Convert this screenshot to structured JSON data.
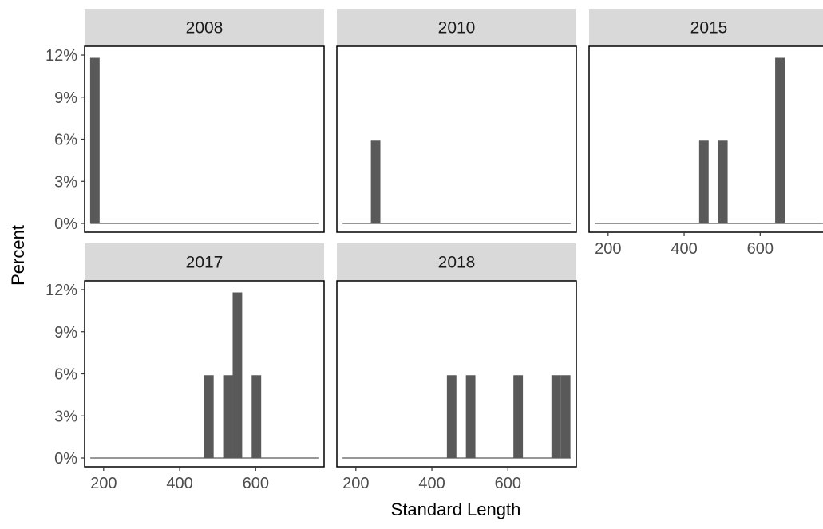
{
  "chart_data": {
    "type": "bar",
    "chart_kind": "faceted histogram",
    "xlabel": "Standard Length",
    "ylabel": "Percent",
    "xlim": [
      150,
      780
    ],
    "ylim": [
      0,
      12
    ],
    "x_ticks": [
      {
        "value": 200,
        "label": "200"
      },
      {
        "value": 400,
        "label": "400"
      },
      {
        "value": 600,
        "label": "600"
      }
    ],
    "y_ticks": [
      {
        "value": 0,
        "label": "0%"
      },
      {
        "value": 3,
        "label": "3%"
      },
      {
        "value": 6,
        "label": "6%"
      },
      {
        "value": 9,
        "label": "9%"
      },
      {
        "value": 12,
        "label": "12%"
      }
    ],
    "bar_color": "#595959",
    "strip_color": "#d9d9d9",
    "panel_border_color": "#000000",
    "bin_width": 25,
    "baseline_range": [
      165,
      765
    ],
    "facets": [
      {
        "label": "2008",
        "bins": [
          {
            "x": 177,
            "y": 11.8
          }
        ]
      },
      {
        "label": "2010",
        "bins": [
          {
            "x": 252,
            "y": 5.9
          }
        ]
      },
      {
        "label": "2015",
        "bins": [
          {
            "x": 452,
            "y": 5.9
          },
          {
            "x": 502,
            "y": 5.9
          },
          {
            "x": 652,
            "y": 11.8
          }
        ]
      },
      {
        "label": "2017",
        "bins": [
          {
            "x": 477,
            "y": 5.9
          },
          {
            "x": 527,
            "y": 5.9
          },
          {
            "x": 552,
            "y": 11.8
          },
          {
            "x": 602,
            "y": 5.9
          }
        ]
      },
      {
        "label": "2018",
        "bins": [
          {
            "x": 452,
            "y": 5.9
          },
          {
            "x": 502,
            "y": 5.9
          },
          {
            "x": 627,
            "y": 5.9
          },
          {
            "x": 727,
            "y": 5.9
          },
          {
            "x": 752,
            "y": 5.9
          }
        ]
      }
    ]
  }
}
